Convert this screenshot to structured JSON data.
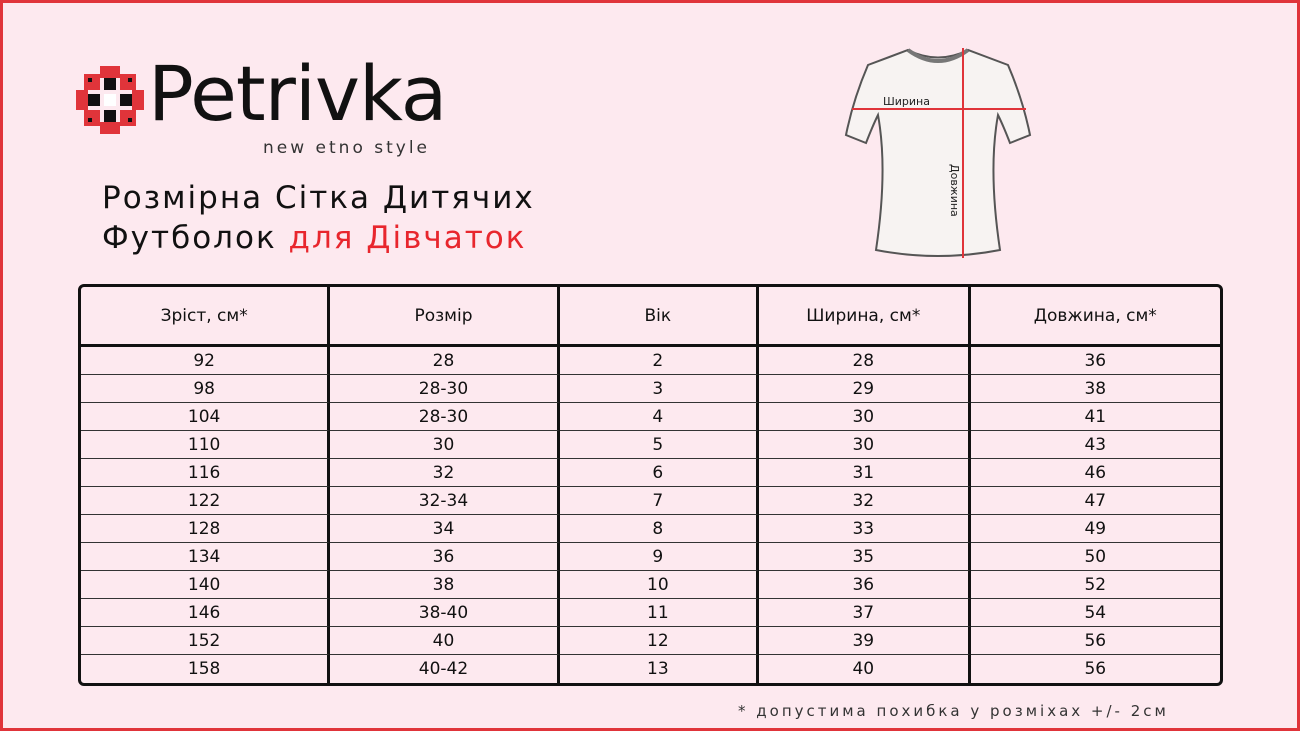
{
  "brand": {
    "name": "Petrivka",
    "tagline": "new etno style"
  },
  "title": {
    "line1": "Розмірна Сітка Дитячих",
    "line2_black": "Футболок",
    "line2_red": "для Дівчаток"
  },
  "diagram": {
    "width_label": "Ширина",
    "length_label": "Довжина"
  },
  "colors": {
    "accent": "#e8262d",
    "background": "#fde9ef"
  },
  "table": {
    "headers": [
      "Зріст, см*",
      "Розмір",
      "Вік",
      "Ширина, см*",
      "Довжина, см*"
    ],
    "rows": [
      [
        "92",
        "28",
        "2",
        "28",
        "36"
      ],
      [
        "98",
        "28-30",
        "3",
        "29",
        "38"
      ],
      [
        "104",
        "28-30",
        "4",
        "30",
        "41"
      ],
      [
        "110",
        "30",
        "5",
        "30",
        "43"
      ],
      [
        "116",
        "32",
        "6",
        "31",
        "46"
      ],
      [
        "122",
        "32-34",
        "7",
        "32",
        "47"
      ],
      [
        "128",
        "34",
        "8",
        "33",
        "49"
      ],
      [
        "134",
        "36",
        "9",
        "35",
        "50"
      ],
      [
        "140",
        "38",
        "10",
        "36",
        "52"
      ],
      [
        "146",
        "38-40",
        "11",
        "37",
        "54"
      ],
      [
        "152",
        "40",
        "12",
        "39",
        "56"
      ],
      [
        "158",
        "40-42",
        "13",
        "40",
        "56"
      ]
    ]
  },
  "footnote": "* допустима похибка у розміхах +/- 2см"
}
